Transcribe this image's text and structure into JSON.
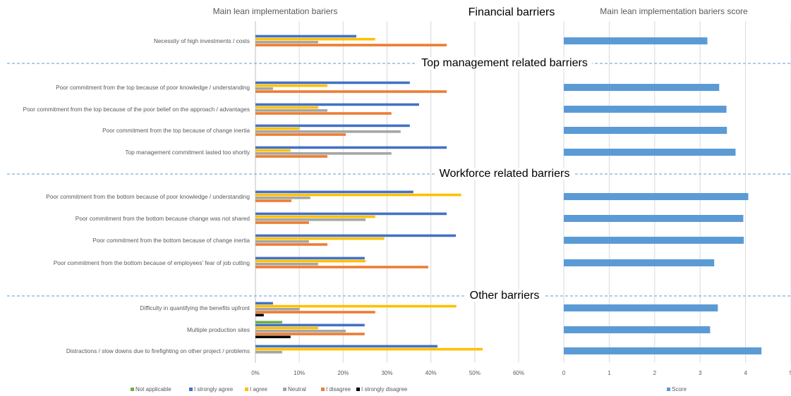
{
  "titles": [
    "Main lean implementation bariers",
    "Main lean implementation bariers score"
  ],
  "sections": [
    "Financial barriers",
    "Top management related barriers",
    "Workforce related barriers",
    "Other barriers"
  ],
  "chart_data": [
    {
      "type": "bar",
      "orientation": "horizontal",
      "categories": [
        "Necessity of high investments / costs",
        "Poor commitment from the top because of poor knowledge / understanding",
        "Poor commitment from the top because of the poor belief on the approach / advantages",
        "Poor commitment from the top because of change inertia",
        "Top management  commitment lasted too shortly",
        "Poor commitment from the bottom because of poor knowledge / understanding",
        "Poor commitment from the bottom because change was not shared",
        "Poor commitment from the bottom because of change inertia",
        "Poor commitment from the bottom because of employees' fear of job cutting",
        "Difficulty in quantifying the benefits upfront",
        "Multiple production sites",
        "Distractions / slow downs due to firefighting on other project / problems"
      ],
      "series": [
        {
          "name": "Not applicable",
          "color": "#70ad47",
          "values": [
            0,
            0,
            0,
            0,
            0,
            0,
            0,
            0,
            0,
            0,
            6.1,
            0
          ]
        },
        {
          "name": "I strongly agree",
          "color": "#4472c4",
          "values": [
            23,
            35.2,
            37.3,
            35.2,
            43.6,
            36,
            43.6,
            45.7,
            24.9,
            4,
            24.9,
            41.5
          ]
        },
        {
          "name": "I agree",
          "color": "#ffc000",
          "values": [
            27.3,
            16.4,
            14.3,
            10.1,
            8,
            46.9,
            27.3,
            29.4,
            25.1,
            45.8,
            14.3,
            51.8
          ]
        },
        {
          "name": "Neutral",
          "color": "#a5a5a5",
          "values": [
            14.3,
            4,
            16.4,
            33.1,
            31,
            12.5,
            25.1,
            12.2,
            14.3,
            10.1,
            20.6,
            6.1
          ]
        },
        {
          "name": "I disagree",
          "color": "#ed7d31",
          "values": [
            43.6,
            43.6,
            31,
            20.6,
            16.4,
            8.2,
            12.2,
            16.4,
            39.4,
            27.3,
            24.9,
            0
          ]
        },
        {
          "name": "I strongly disagree",
          "color": "#000000",
          "values": [
            0,
            0,
            0,
            0,
            0,
            0,
            0,
            0,
            0,
            1.9,
            8,
            0
          ]
        }
      ],
      "xlim": [
        0,
        60
      ],
      "xticks": [
        {
          "value": 0,
          "label": "0%"
        },
        {
          "value": 10,
          "label": "10%"
        },
        {
          "value": 20,
          "label": "20%"
        },
        {
          "value": 30,
          "label": "30%"
        },
        {
          "value": 40,
          "label": "40%"
        },
        {
          "value": 50,
          "label": "50%"
        },
        {
          "value": 60,
          "label": "60%"
        }
      ],
      "grid": true,
      "legend": "bottom"
    },
    {
      "type": "bar",
      "orientation": "horizontal",
      "series": [
        {
          "name": "Score",
          "color": "#5b9bd5",
          "values": [
            3.16,
            3.42,
            3.58,
            3.59,
            3.78,
            4.06,
            3.95,
            3.96,
            3.31,
            3.39,
            3.22,
            4.35
          ]
        }
      ],
      "xlim": [
        0,
        5
      ],
      "xticks": [
        0,
        1,
        2,
        3,
        4,
        5
      ],
      "grid": true,
      "legend": "bottom"
    }
  ]
}
